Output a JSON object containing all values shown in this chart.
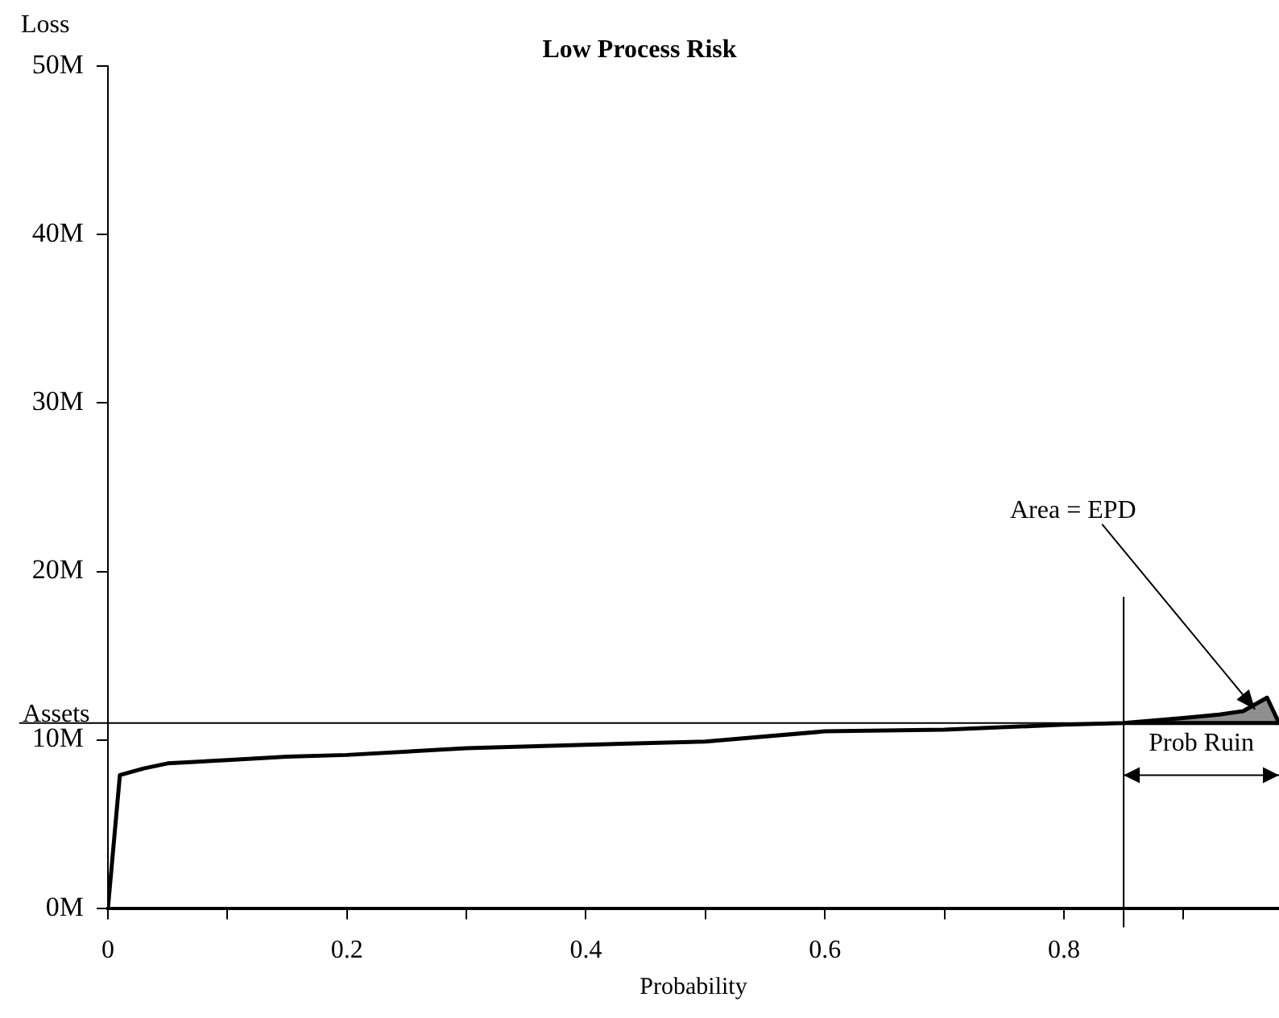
{
  "chart_data": {
    "type": "line",
    "title": "Low Process Risk",
    "xlabel": "Probability",
    "ylabel": "Loss",
    "series": [
      {
        "color": "#000000",
        "x": [
          0,
          0.01,
          0.03,
          0.05,
          0.1,
          0.15,
          0.2,
          0.3,
          0.4,
          0.5,
          0.6,
          0.7,
          0.8,
          0.85,
          0.9,
          0.93,
          0.95,
          0.97,
          0.98
        ],
        "values": [
          0,
          7.9,
          8.3,
          8.6,
          8.8,
          9.0,
          9.1,
          9.5,
          9.7,
          9.9,
          10.5,
          10.6,
          10.9,
          11.0,
          11.3,
          11.5,
          11.7,
          12.5,
          11.0
        ],
        "lower": [
          null,
          null,
          null,
          null,
          null,
          null,
          null,
          null,
          null,
          null,
          null,
          null,
          null,
          11.0,
          11.0,
          11.0,
          11.0,
          11.0,
          11.0
        ],
        "upper": [
          null,
          null,
          null,
          null,
          null,
          null,
          null,
          null,
          null,
          null,
          null,
          null,
          null,
          11.0,
          11.3,
          11.5,
          11.7,
          12.5,
          11.0
        ]
      }
    ],
    "xlim": [
      0,
      0.98
    ],
    "xticks": [
      0,
      {
        "value": 0.1,
        "label": null
      },
      0.2,
      {
        "value": 0.3,
        "label": null
      },
      0.4,
      {
        "value": 0.5,
        "label": null
      },
      0.6,
      {
        "value": 0.7,
        "label": null
      },
      0.8,
      {
        "value": 0.9,
        "label": null
      }
    ],
    "ylim": [
      0,
      50
    ],
    "yticks": [
      {
        "value": 0,
        "label": "0M"
      },
      {
        "value": 10,
        "label": "10M"
      },
      {
        "value": 20,
        "label": "20M"
      },
      {
        "value": 30,
        "label": "30M"
      },
      {
        "value": 40,
        "label": "40M"
      },
      {
        "value": 50,
        "label": "50M"
      }
    ],
    "ref_lines": [
      {
        "axis": "y",
        "value": 11,
        "label": "Assets",
        "color": "#000000"
      },
      {
        "axis": "x",
        "value": 0.85,
        "label": null,
        "color": "#000000"
      }
    ],
    "annotations": [
      {
        "text": "Area = EPD",
        "x": 0.96,
        "y": 11.8
      },
      "Prob Ruin"
    ],
    "grid": false,
    "legend": false,
    "marker": "none",
    "line_style": "solid"
  }
}
